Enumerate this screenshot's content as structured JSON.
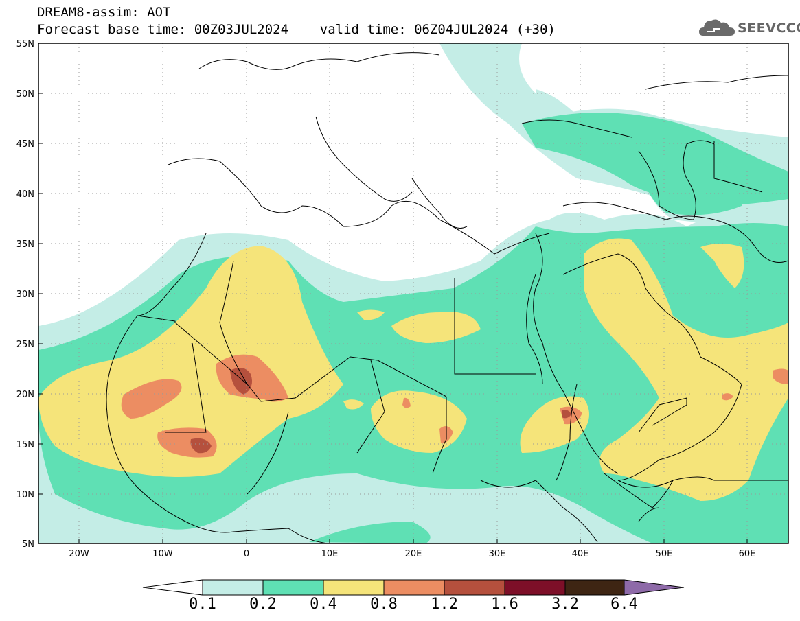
{
  "header": {
    "line1": "DREAM8-assim: AOT",
    "line2": "Forecast base time: 00Z03JUL2024    valid time: 06Z04JUL2024 (+30)"
  },
  "logo": {
    "text": "SEEVCCC",
    "icon": "cloud-icon"
  },
  "map": {
    "lon_range": [
      -25,
      65
    ],
    "lat_range": [
      5,
      55
    ],
    "lat_ticks": [
      "55N",
      "50N",
      "45N",
      "40N",
      "35N",
      "30N",
      "25N",
      "20N",
      "15N",
      "10N",
      "5N"
    ],
    "lon_ticks": [
      "20W",
      "10W",
      "0",
      "10E",
      "20E",
      "30E",
      "40E",
      "50E",
      "60E"
    ]
  },
  "colorbar": {
    "labels": [
      "0.1",
      "0.2",
      "0.4",
      "0.8",
      "1.2",
      "1.6",
      "3.2",
      "6.4"
    ],
    "colors": [
      "#c4ede6",
      "#5fe0b4",
      "#f5e47a",
      "#ec8d62",
      "#b5503d",
      "#7d0f28",
      "#3e2513",
      "#8e6aa8"
    ]
  },
  "colors": {
    "border": "#000000",
    "background": "#ffffff"
  }
}
